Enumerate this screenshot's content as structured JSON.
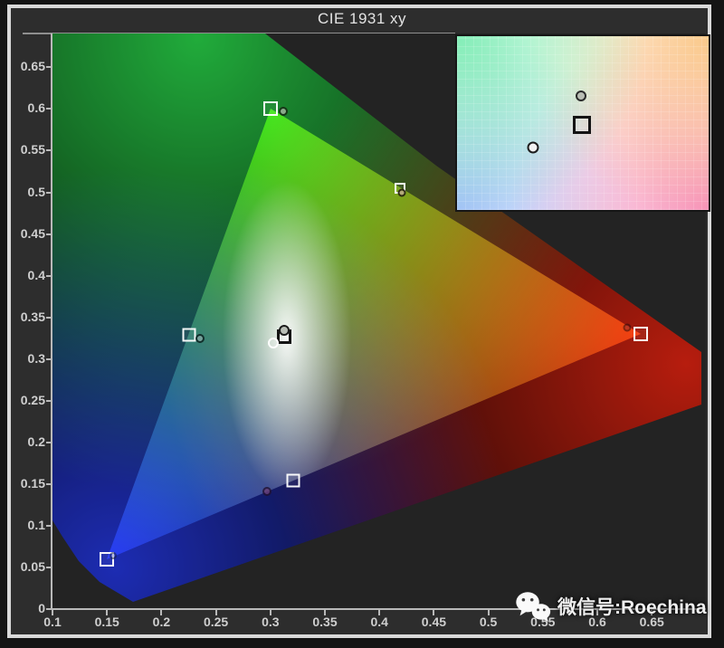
{
  "palette": {
    "frame": "#d9d9d9",
    "panel_bg": "#2d2d2d",
    "plot_bg": "#232323",
    "axis": "#b9b9b9",
    "label_text": "#cfcfcf",
    "title_text": "#e3e3e3"
  },
  "watermark": {
    "text": "微信号:Roechina",
    "icon": "wechat-icon"
  },
  "chart_data": {
    "type": "scatter",
    "subtype": "cie-1931-xy-chromaticity",
    "title": "CIE 1931 xy",
    "xlabel": "",
    "ylabel": "",
    "xlim": [
      0.1,
      0.7
    ],
    "ylim": [
      0,
      0.69
    ],
    "grid": false,
    "x_ticks": [
      {
        "v": 0.1,
        "label": "0.1"
      },
      {
        "v": 0.15,
        "label": "0.15"
      },
      {
        "v": 0.2,
        "label": "0.2"
      },
      {
        "v": 0.25,
        "label": "0.25"
      },
      {
        "v": 0.3,
        "label": "0.3"
      },
      {
        "v": 0.35,
        "label": "0.35"
      },
      {
        "v": 0.4,
        "label": "0.4"
      },
      {
        "v": 0.45,
        "label": "0.45"
      },
      {
        "v": 0.5,
        "label": "0.5"
      },
      {
        "v": 0.55,
        "label": "0.55"
      },
      {
        "v": 0.6,
        "label": "0.6"
      },
      {
        "v": 0.65,
        "label": "0.65"
      }
    ],
    "y_ticks": [
      {
        "v": 0.0,
        "label": "0"
      },
      {
        "v": 0.05,
        "label": "0.05"
      },
      {
        "v": 0.1,
        "label": "0.1"
      },
      {
        "v": 0.15,
        "label": "0.15"
      },
      {
        "v": 0.2,
        "label": "0.2"
      },
      {
        "v": 0.25,
        "label": "0.25"
      },
      {
        "v": 0.3,
        "label": "0.3"
      },
      {
        "v": 0.35,
        "label": "0.35"
      },
      {
        "v": 0.4,
        "label": "0.4"
      },
      {
        "v": 0.45,
        "label": "0.45"
      },
      {
        "v": 0.5,
        "label": "0.5"
      },
      {
        "v": 0.55,
        "label": "0.55"
      },
      {
        "v": 0.6,
        "label": "0.6"
      },
      {
        "v": 0.65,
        "label": "0.65"
      }
    ],
    "gamut_triangle": {
      "green": {
        "x": 0.3,
        "y": 0.6
      },
      "red": {
        "x": 0.64,
        "y": 0.33
      },
      "blue": {
        "x": 0.15,
        "y": 0.06
      }
    },
    "targets": [
      {
        "name": "green-primary-target",
        "x": 0.3,
        "y": 0.6,
        "marker": "square-white",
        "size": 16
      },
      {
        "name": "red-primary-target",
        "x": 0.64,
        "y": 0.33,
        "marker": "square-white",
        "size": 16
      },
      {
        "name": "blue-primary-target",
        "x": 0.15,
        "y": 0.06,
        "marker": "square-white",
        "size": 16
      },
      {
        "name": "cyan-secondary-target",
        "x": 0.225,
        "y": 0.329,
        "marker": "square-white",
        "size": 15
      },
      {
        "name": "magenta-secondary-target",
        "x": 0.321,
        "y": 0.154,
        "marker": "square-white",
        "size": 15
      },
      {
        "name": "yellow-secondary-target",
        "x": 0.419,
        "y": 0.505,
        "marker": "square-white",
        "size": 12
      },
      {
        "name": "white-point-target",
        "x": 0.313,
        "y": 0.327,
        "marker": "square-black",
        "size": 16
      }
    ],
    "measurements": [
      {
        "name": "green-measured",
        "x": 0.312,
        "y": 0.597,
        "marker": "dot",
        "size": 10,
        "fill": "#8fae8f",
        "edge": "#163316",
        "alpha": 0.95
      },
      {
        "name": "yellow-measured",
        "x": 0.421,
        "y": 0.5,
        "marker": "dot",
        "size": 9,
        "fill": "#b3a878",
        "edge": "#27250f",
        "alpha": 0.95
      },
      {
        "name": "cyan-measured",
        "x": 0.235,
        "y": 0.325,
        "marker": "dot",
        "size": 10,
        "fill": "#7aa39e",
        "edge": "#0f2b28",
        "alpha": 0.95
      },
      {
        "name": "red-measured",
        "x": 0.627,
        "y": 0.338,
        "marker": "dot",
        "size": 9,
        "fill": "#963030",
        "edge": "#2a0c0c",
        "alpha": 0.55
      },
      {
        "name": "magenta-measured",
        "x": 0.297,
        "y": 0.141,
        "marker": "dot",
        "size": 10,
        "fill": "#6b3f77",
        "edge": "#221030",
        "alpha": 0.8
      },
      {
        "name": "blue-measured",
        "x": 0.156,
        "y": 0.064,
        "marker": "dot",
        "size": 8,
        "fill": "#8a93c9",
        "edge": "#1a1f40",
        "alpha": 0.55
      },
      {
        "name": "white-measured",
        "x": 0.313,
        "y": 0.334,
        "marker": "dot",
        "size": 12,
        "fill": "#b9beb6",
        "edge": "#1b1b1b",
        "alpha": 1
      },
      {
        "name": "white-reference-circle",
        "x": 0.303,
        "y": 0.319,
        "marker": "circle-open",
        "size": 12
      }
    ],
    "inset": {
      "description": "zoomed view around white point",
      "points": [
        {
          "name": "inset-measured-dot",
          "marker": "dot",
          "fx": 0.494,
          "fy": 0.342,
          "size": 12,
          "fill": "#b9bdb4",
          "edge": "#2a2a2a",
          "alpha": 1
        },
        {
          "name": "inset-target-square",
          "marker": "square-black",
          "fx": 0.498,
          "fy": 0.51,
          "size": 20
        },
        {
          "name": "inset-reference-circle",
          "marker": "circle-open-dark",
          "fx": 0.302,
          "fy": 0.643,
          "size": 13
        }
      ]
    }
  }
}
